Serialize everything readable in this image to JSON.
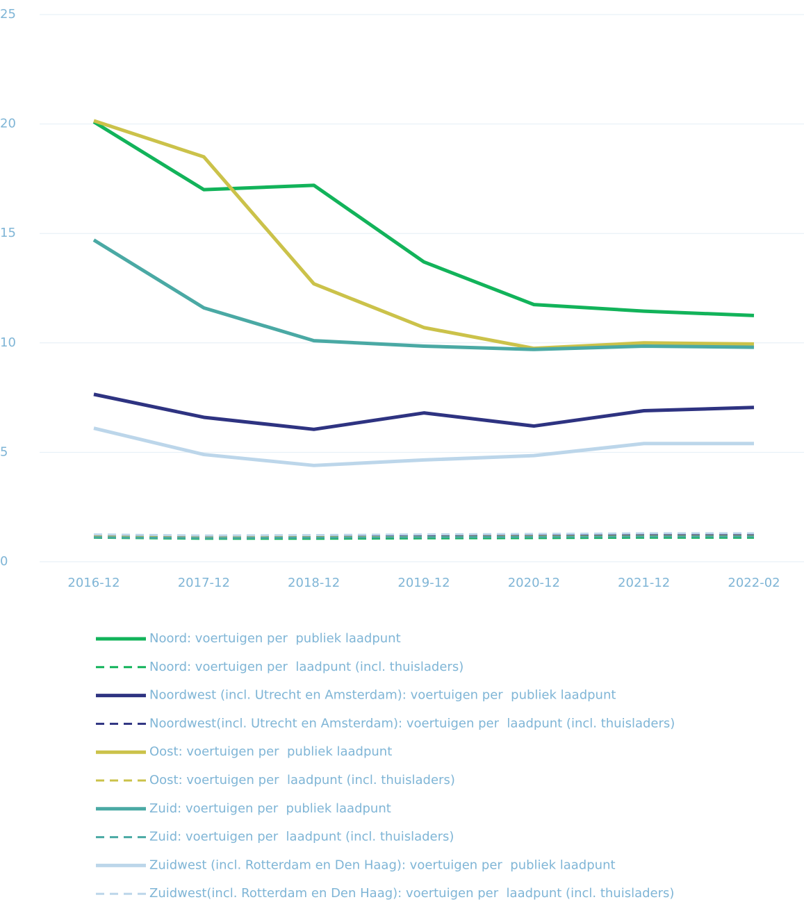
{
  "chart_data": {
    "type": "line",
    "categories": [
      "2016-12",
      "2017-12",
      "2018-12",
      "2019-12",
      "2020-12",
      "2021-12",
      "2022-02"
    ],
    "ylim": [
      0,
      25
    ],
    "yticks": [
      0,
      5,
      10,
      15,
      20,
      25
    ],
    "grid": true,
    "legend": "bottom",
    "series": [
      {
        "name": "Noord: voertuigen per  publiek laadpunt",
        "color": "#12b35a",
        "style": "solid",
        "values": [
          20.1,
          17.0,
          17.2,
          13.7,
          11.75,
          11.45,
          11.25
        ]
      },
      {
        "name": "Noord: voertuigen per  laadpunt (incl. thuisladers)",
        "color": "#12b35a",
        "style": "dashed",
        "values": [
          1.1,
          1.05,
          1.05,
          1.07,
          1.08,
          1.1,
          1.1
        ]
      },
      {
        "name": "Noordwest (incl. Utrecht en Amsterdam): voertuigen per  publiek laadpunt",
        "color": "#2e3381",
        "style": "solid",
        "values": [
          7.65,
          6.6,
          6.05,
          6.8,
          6.2,
          6.9,
          7.05
        ]
      },
      {
        "name": "Noordwest(incl. Utrecht en Amsterdam): voertuigen per  laadpunt (incl. thuisladers)",
        "color": "#2e3381",
        "style": "dashed",
        "values": [
          1.2,
          1.15,
          1.17,
          1.2,
          1.2,
          1.22,
          1.22
        ]
      },
      {
        "name": "Oost: voertuigen per  publiek laadpunt",
        "color": "#cbc24a",
        "style": "solid",
        "values": [
          20.15,
          18.5,
          12.7,
          10.7,
          9.75,
          10.0,
          9.95
        ]
      },
      {
        "name": "Oost: voertuigen per  laadpunt (incl. thuisladers)",
        "color": "#cbc24a",
        "style": "dashed",
        "values": [
          1.15,
          1.1,
          1.12,
          1.13,
          1.15,
          1.17,
          1.17
        ]
      },
      {
        "name": "Zuid: voertuigen per  publiek laadpunt",
        "color": "#4aa9a4",
        "style": "solid",
        "values": [
          14.7,
          11.6,
          10.1,
          9.85,
          9.7,
          9.85,
          9.8
        ]
      },
      {
        "name": "Zuid: voertuigen per  laadpunt (incl. thuisladers)",
        "color": "#4aa9a4",
        "style": "dashed",
        "values": [
          1.12,
          1.08,
          1.1,
          1.12,
          1.13,
          1.15,
          1.15
        ]
      },
      {
        "name": "Zuidwest (incl. Rotterdam en Den Haag): voertuigen per  publiek laadpunt",
        "color": "#bcd6ea",
        "style": "solid",
        "values": [
          6.1,
          4.9,
          4.4,
          4.65,
          4.85,
          5.4,
          5.4
        ]
      },
      {
        "name": "Zuidwest(incl. Rotterdam en Den Haag): voertuigen per  laadpunt (incl. thuisladers)",
        "color": "#bcd6ea",
        "style": "dashed",
        "values": [
          1.25,
          1.2,
          1.22,
          1.25,
          1.27,
          1.3,
          1.3
        ]
      }
    ]
  }
}
